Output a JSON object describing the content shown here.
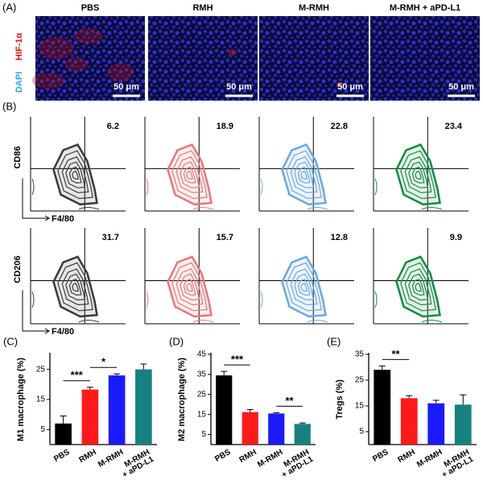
{
  "panel_a": {
    "label": "(A)",
    "channels": [
      "DAPI",
      "HIF-1α"
    ],
    "groups": [
      "PBS",
      "RMH",
      "M-RMH",
      "M-RMH + aPD-L1"
    ],
    "scale_bar": "50 μm"
  },
  "panel_b": {
    "label": "(B)",
    "x_axis": "F4/80",
    "rows": [
      {
        "y_axis": "CD86",
        "values": [
          6.2,
          18.9,
          22.8,
          23.4
        ]
      },
      {
        "y_axis": "CD206",
        "values": [
          31.7,
          15.7,
          12.8,
          9.9
        ]
      }
    ]
  },
  "chart_data": [
    {
      "type": "bar",
      "label": "(C)",
      "ylabel": "M1 macrophage (%)",
      "categories": [
        "PBS",
        "RMH",
        "M-RMH",
        "M-RMH\n+ aPD-L1"
      ],
      "values": [
        7,
        18.3,
        23,
        25
      ],
      "errors": [
        2.5,
        0.8,
        0.5,
        1.8
      ],
      "colors": [
        "#000000",
        "#ff1a1a",
        "#1a1aff",
        "#178080"
      ],
      "ylim": [
        0,
        30
      ],
      "yticks": [
        5,
        15,
        25
      ],
      "annotations": [
        {
          "text": "***",
          "between": [
            "PBS",
            "RMH"
          ]
        },
        {
          "text": "*",
          "between": [
            "RMH",
            "M-RMH"
          ]
        }
      ]
    },
    {
      "type": "bar",
      "label": "(D)",
      "ylabel": "M2 macrophage (%)",
      "categories": [
        "PBS",
        "RMH",
        "M-RMH",
        "M-RMH\n+ aPD-L1"
      ],
      "values": [
        34.5,
        16.2,
        15.5,
        10.3
      ],
      "errors": [
        2,
        1.3,
        0.4,
        0.5
      ],
      "colors": [
        "#000000",
        "#ff1a1a",
        "#1a1aff",
        "#178080"
      ],
      "ylim": [
        0,
        45
      ],
      "yticks": [
        5,
        15,
        25,
        35,
        45
      ],
      "annotations": [
        {
          "text": "***",
          "between": [
            "PBS",
            "RMH"
          ]
        },
        {
          "text": "**",
          "between": [
            "M-RMH",
            "M-RMH\n+ aPD-L1"
          ]
        }
      ]
    },
    {
      "type": "bar",
      "label": "(E)",
      "ylabel": "Tregs (%)",
      "categories": [
        "PBS",
        "RMH",
        "M-RMH",
        "M-RMH\n+ aPD-L1"
      ],
      "values": [
        29,
        18,
        16,
        15.5
      ],
      "errors": [
        1.5,
        1,
        1.2,
        3.8
      ],
      "colors": [
        "#000000",
        "#ff1a1a",
        "#1a1aff",
        "#178080"
      ],
      "ylim": [
        0,
        35
      ],
      "yticks": [
        5,
        15,
        25,
        35
      ],
      "annotations": [
        {
          "text": "**",
          "between": [
            "PBS",
            "RMH"
          ]
        }
      ]
    }
  ]
}
